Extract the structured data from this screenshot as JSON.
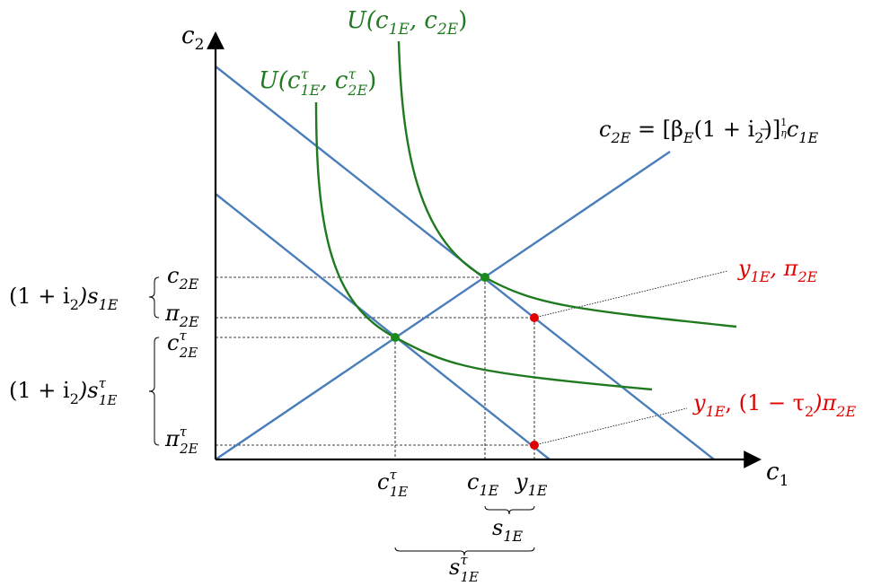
{
  "colors": {
    "budget_line": "#4a7ebb",
    "indifference_curve": "#1f7a1f",
    "point_green": "#1a8a1a",
    "point_red": "#e00000",
    "text_red": "#e00000",
    "axis": "#000000"
  },
  "axes": {
    "x": {
      "base": "c",
      "sub": "1"
    },
    "y": {
      "base": "c",
      "sub": "2"
    }
  },
  "curves": {
    "u_high": {
      "base": "U(c",
      "s1": "1E",
      "mid": ", c",
      "s2": "2E",
      "end": ")"
    },
    "u_low": {
      "base": "U(c",
      "sup": "τ",
      "s1": "1E",
      "mid": ", c",
      "sup2": "τ",
      "s2": "2E",
      "end": ")"
    },
    "consumption_path": {
      "lhs": "c",
      "lhs_sub": "2E",
      "eq": " = [β",
      "beta_sub": "E",
      "mid": "(1 + i",
      "i_sub": "2",
      "close": ")]",
      "exp_num": "1",
      "exp_den": "η",
      "rhs": "c",
      "rhs_sub": "1E"
    }
  },
  "points": {
    "endowment_untaxed": {
      "a": "y",
      "a_sub": "1E",
      "b": ", π",
      "b_sub": "2E"
    },
    "endowment_taxed": {
      "a": "y",
      "a_sub": "1E",
      "b": ", (1 − τ",
      "b_sub": "2",
      "c": ")π",
      "c_sub": "2E"
    }
  },
  "y_ticks": {
    "c2E": {
      "base": "c",
      "sub": "2E"
    },
    "pi2E": {
      "base": "π",
      "sub": "2E"
    },
    "c2E_tau": {
      "base": "c",
      "sup": "τ",
      "sub": "2E"
    },
    "pi2E_tau": {
      "base": "π",
      "sup": "τ",
      "sub": "2E"
    }
  },
  "x_ticks": {
    "c1E_tau": {
      "base": "c",
      "sup": "τ",
      "sub": "1E"
    },
    "c1E": {
      "base": "c",
      "sub": "1E"
    },
    "y1E": {
      "base": "y",
      "sub": "1E"
    }
  },
  "brackets": {
    "savings_y": {
      "pre": "(1 + i",
      "pre_sub": "2",
      "mid": ")s",
      "sub": "1E"
    },
    "savings_tau_y": {
      "pre": "(1 + i",
      "pre_sub": "2",
      "mid": ")s",
      "sup": "τ",
      "sub": "1E"
    },
    "s1E": {
      "base": "s",
      "sub": "1E"
    },
    "s1E_tau": {
      "base": "s",
      "sup": "τ",
      "sub": "1E"
    }
  }
}
